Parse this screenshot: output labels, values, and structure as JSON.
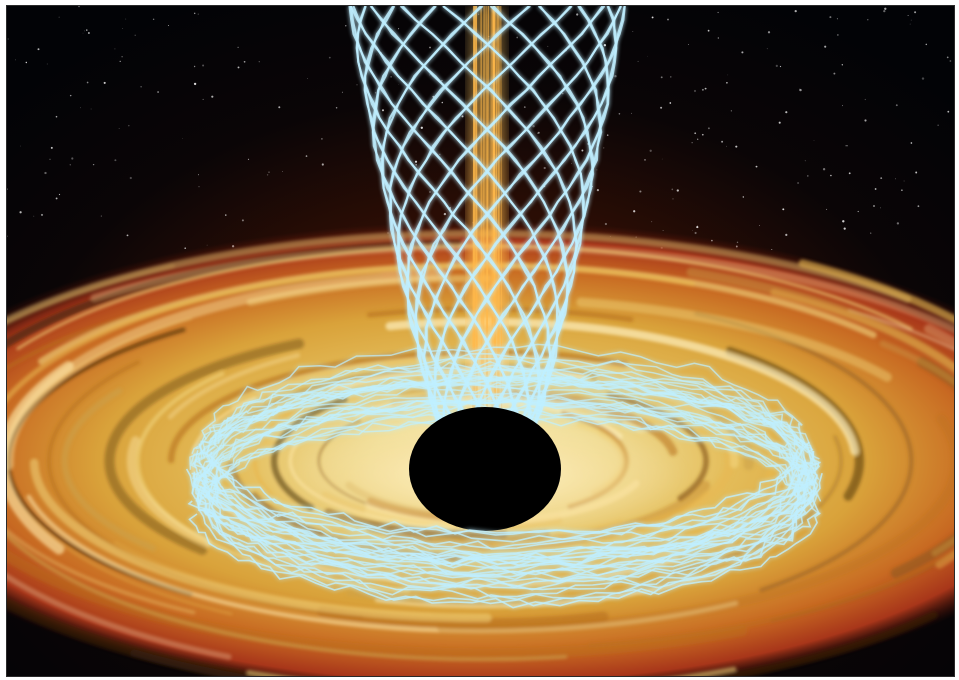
{
  "scene": {
    "subject": "black-hole",
    "palette": {
      "space": "#05070c",
      "disk_inner": "#f2e2a0",
      "disk_mid": "#d9a23a",
      "disk_outer": "#c0421a",
      "field_lines": "#bfefff",
      "jet": "#ffb84a",
      "hole": "#000000"
    },
    "elements": [
      "starfield",
      "accretion-disk",
      "relativistic-jet",
      "magnetic-field-funnel",
      "magnetic-field-ring",
      "event-horizon"
    ]
  }
}
